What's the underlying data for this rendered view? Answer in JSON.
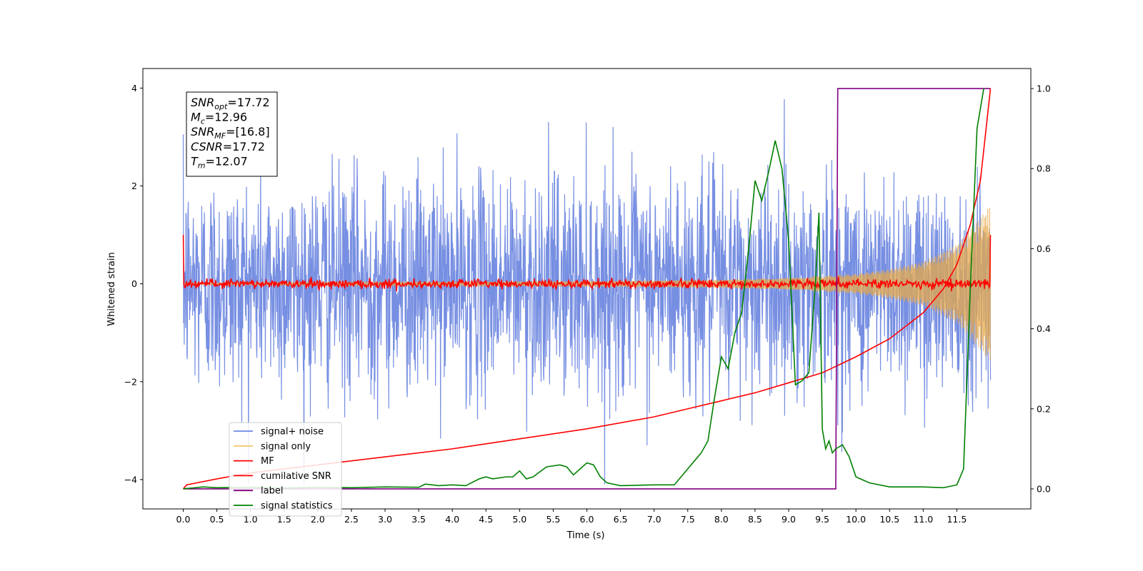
{
  "chart_data": {
    "type": "line",
    "xlabel": "Time (s)",
    "ylabel": "Whitened strain",
    "xlim": [
      -0.6,
      12.6
    ],
    "ylim": [
      -4.6,
      4.4
    ],
    "y2lim": [
      -0.05,
      1.05
    ],
    "x_ticks": [
      "0.0",
      "0.5",
      "1.0",
      "1.5",
      "2.0",
      "2.5",
      "3.0",
      "3.5",
      "4.0",
      "4.5",
      "5.0",
      "5.5",
      "6.0",
      "6.5",
      "7.0",
      "7.5",
      "8.0",
      "8.5",
      "9.0",
      "9.5",
      "10.0",
      "10.5",
      "11.0",
      "11.5"
    ],
    "y_ticks": [
      -4,
      -2,
      0,
      2,
      4
    ],
    "y_tick_labels": [
      "−4",
      "−2",
      "0",
      "2",
      "4"
    ],
    "y2_ticks": [
      0.0,
      0.2,
      0.4,
      0.6,
      0.8,
      1.0
    ],
    "y2_tick_labels": [
      "0.0",
      "0.2",
      "0.4",
      "0.6",
      "0.8",
      "1.0"
    ],
    "grid": false,
    "legend_placement": "lower-left",
    "colors": {
      "signal_noise": "#6b86e0",
      "signal_only": "#e5a84a",
      "mf": "#ff0000",
      "cumulative_snr": "#ff0000",
      "label": "#800080",
      "signal_statistics": "#008000"
    },
    "legend": [
      {
        "name": "signal+ noise",
        "color": "#6b86e0"
      },
      {
        "name": "signal only",
        "color": "#f2c86a"
      },
      {
        "name": "MF",
        "color": "#ff0000"
      },
      {
        "name": "cumilative SNR",
        "color": "#ff0000"
      },
      {
        "name": "label",
        "color": "#800080"
      },
      {
        "name": "signal statistics",
        "color": "#008000"
      }
    ],
    "annotation": {
      "lines": [
        {
          "base": "SNR",
          "sub": "opt",
          "value": "=17.72"
        },
        {
          "base": "M",
          "sub": "c",
          "value": "=12.96"
        },
        {
          "base": "SNR",
          "sub": "MF",
          "value": "=[16.8]"
        },
        {
          "base": "CSNR",
          "sub": "",
          "value": "=17.72"
        },
        {
          "base": "T",
          "sub": "m",
          "value": "=12.07"
        }
      ]
    },
    "series": [
      {
        "name": "signal+ noise",
        "axis": "left",
        "x_range": [
          0.0,
          12.0
        ],
        "noise_std": 1.1,
        "noise_extreme": [
          -4.1,
          4.05
        ]
      },
      {
        "name": "signal only",
        "axis": "left",
        "x_range": [
          0.0,
          12.0
        ],
        "envelope_x": [
          0.0,
          6.0,
          8.0,
          9.0,
          10.0,
          10.5,
          11.0,
          11.5,
          12.0
        ],
        "envelope": [
          0.02,
          0.05,
          0.08,
          0.12,
          0.2,
          0.3,
          0.45,
          0.8,
          1.6
        ]
      },
      {
        "name": "MF",
        "axis": "left",
        "x_range": [
          0.0,
          12.0
        ],
        "baseline": 0.0,
        "start_value": 1.0,
        "end_value": 1.0,
        "noise_amplitude": 0.08
      },
      {
        "name": "cumilative SNR",
        "axis": "right",
        "x": [
          0.0,
          0.05,
          0.5,
          1.0,
          2.0,
          3.0,
          4.0,
          5.0,
          6.0,
          7.0,
          7.5,
          8.0,
          8.5,
          9.0,
          9.5,
          10.0,
          10.5,
          11.0,
          11.3,
          11.5,
          11.7,
          11.85,
          12.0
        ],
        "values": [
          0.0,
          0.01,
          0.025,
          0.04,
          0.06,
          0.08,
          0.1,
          0.125,
          0.15,
          0.18,
          0.2,
          0.22,
          0.24,
          0.265,
          0.29,
          0.33,
          0.375,
          0.44,
          0.5,
          0.56,
          0.66,
          0.77,
          1.0
        ]
      },
      {
        "name": "label",
        "axis": "right",
        "x": [
          0.0,
          9.7,
          9.73,
          12.0
        ],
        "values": [
          0.0,
          0.0,
          1.0,
          1.0
        ]
      },
      {
        "name": "signal statistics",
        "axis": "right",
        "x": [
          0.0,
          0.3,
          0.5,
          1.0,
          1.5,
          2.0,
          2.5,
          3.0,
          3.5,
          3.6,
          3.8,
          4.0,
          4.2,
          4.4,
          4.5,
          4.6,
          4.8,
          4.9,
          5.0,
          5.1,
          5.2,
          5.4,
          5.6,
          5.7,
          5.8,
          6.0,
          6.1,
          6.2,
          6.3,
          6.5,
          7.0,
          7.3,
          7.5,
          7.6,
          7.7,
          7.8,
          7.9,
          8.0,
          8.1,
          8.2,
          8.3,
          8.4,
          8.5,
          8.6,
          8.7,
          8.8,
          8.9,
          9.0,
          9.1,
          9.2,
          9.3,
          9.4,
          9.45,
          9.5,
          9.55,
          9.6,
          9.65,
          9.7,
          9.8,
          9.9,
          10.0,
          10.2,
          10.5,
          11.0,
          11.3,
          11.5,
          11.6,
          11.7,
          11.8,
          11.9
        ],
        "values": [
          0.0,
          0.005,
          0.003,
          0.004,
          0.002,
          0.004,
          0.003,
          0.005,
          0.004,
          0.012,
          0.008,
          0.01,
          0.008,
          0.025,
          0.03,
          0.025,
          0.03,
          0.03,
          0.045,
          0.025,
          0.03,
          0.055,
          0.06,
          0.055,
          0.035,
          0.065,
          0.06,
          0.03,
          0.015,
          0.008,
          0.01,
          0.01,
          0.05,
          0.07,
          0.09,
          0.12,
          0.23,
          0.33,
          0.3,
          0.39,
          0.44,
          0.59,
          0.77,
          0.72,
          0.79,
          0.87,
          0.8,
          0.62,
          0.26,
          0.27,
          0.29,
          0.52,
          0.69,
          0.15,
          0.1,
          0.12,
          0.09,
          0.1,
          0.11,
          0.08,
          0.03,
          0.015,
          0.005,
          0.005,
          0.003,
          0.01,
          0.05,
          0.5,
          0.9,
          1.0
        ]
      }
    ]
  }
}
